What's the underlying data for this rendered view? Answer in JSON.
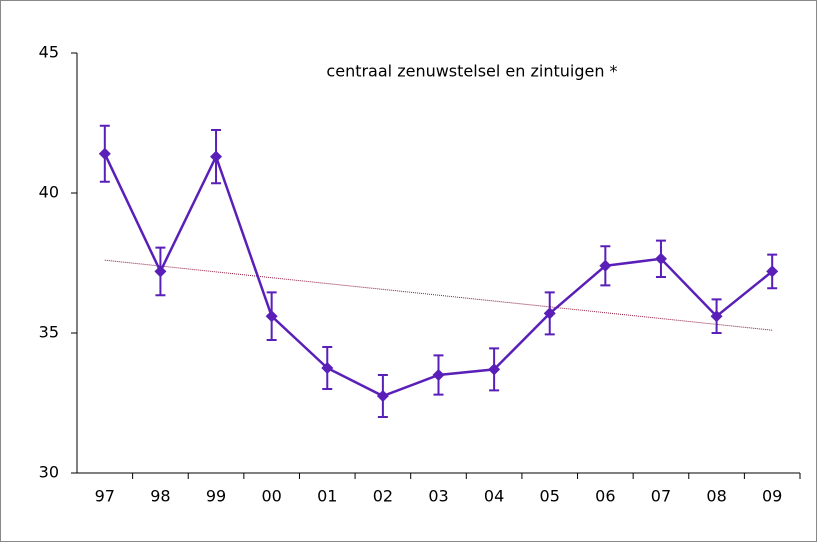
{
  "chart_data": {
    "type": "line",
    "title": "centraal zenuwstelsel en zintuigen *",
    "categories": [
      "97",
      "98",
      "99",
      "00",
      "01",
      "02",
      "03",
      "04",
      "05",
      "06",
      "07",
      "08",
      "09"
    ],
    "series": [
      {
        "color": "#5a1fb8",
        "values": [
          41.4,
          37.2,
          41.3,
          35.6,
          33.75,
          32.75,
          33.5,
          33.7,
          35.7,
          37.4,
          37.65,
          35.6,
          37.2
        ],
        "errors": [
          1.0,
          0.85,
          0.95,
          0.85,
          0.75,
          0.75,
          0.7,
          0.75,
          0.75,
          0.7,
          0.65,
          0.6,
          0.6
        ]
      }
    ],
    "trendline": {
      "color": "#8b1a3a",
      "values": [
        37.6,
        35.1
      ]
    },
    "ylim": [
      30,
      45
    ],
    "yticks": [
      30,
      35,
      40,
      45
    ]
  }
}
